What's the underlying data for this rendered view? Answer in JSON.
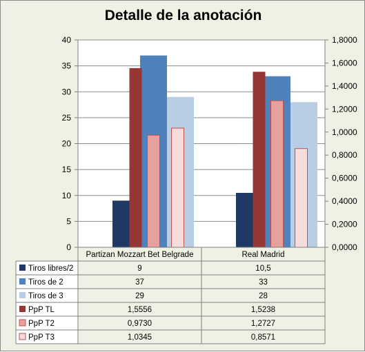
{
  "chart_data": {
    "type": "bar",
    "title": "Detalle de la anotación",
    "categories": [
      "Partizan Mozzart Bet Belgrade",
      "Real Madrid"
    ],
    "y_left": {
      "min": 0,
      "max": 40,
      "ticks": [
        "0",
        "5",
        "10",
        "15",
        "20",
        "25",
        "30",
        "35",
        "40"
      ]
    },
    "y_right": {
      "min": 0,
      "max": 1.8,
      "ticks": [
        "0,0000",
        "0,2000",
        "0,4000",
        "0,6000",
        "0,8000",
        "1,0000",
        "1,2000",
        "1,4000",
        "1,6000",
        "1,8000"
      ]
    },
    "grid": true,
    "legend": "data-table",
    "series": [
      {
        "name": "Tiros libres/2",
        "axis": "left",
        "color": "#1f3864",
        "values": [
          9,
          10.5
        ],
        "labels": [
          "9",
          "10,5"
        ]
      },
      {
        "name": "Tiros de 2",
        "axis": "left",
        "color": "#4f81bd",
        "values": [
          37,
          33
        ],
        "labels": [
          "37",
          "33"
        ]
      },
      {
        "name": "Tiros de 3",
        "axis": "left",
        "color": "#b9cde5",
        "values": [
          29,
          28
        ],
        "labels": [
          "29",
          "28"
        ]
      },
      {
        "name": "PpP TL",
        "axis": "right",
        "color": "#953735",
        "values": [
          1.5556,
          1.5238
        ],
        "labels": [
          "1,5556",
          "1,5238"
        ]
      },
      {
        "name": "PpP T2",
        "axis": "right",
        "color": "#e6a09d",
        "stroke": "#c0504d",
        "values": [
          0.973,
          1.2727
        ],
        "labels": [
          "0,9730",
          "1,2727"
        ]
      },
      {
        "name": "PpP T3",
        "axis": "right",
        "color": "#f7dcdb",
        "stroke": "#c0504d",
        "values": [
          1.0345,
          0.8571
        ],
        "labels": [
          "1,0345",
          "0,8571"
        ]
      }
    ]
  }
}
